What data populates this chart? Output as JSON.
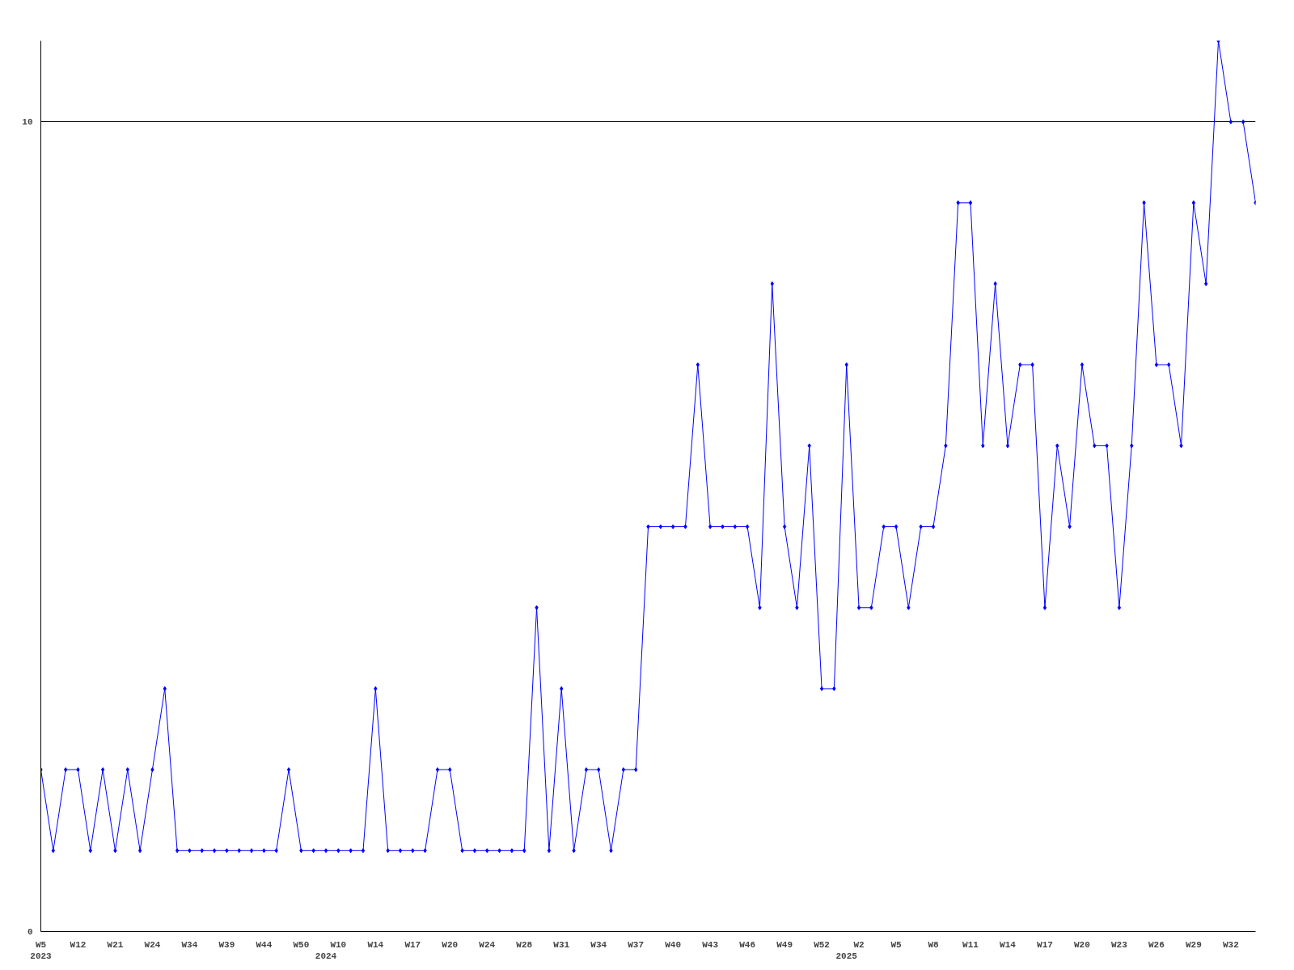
{
  "chart_data": {
    "type": "line",
    "categories": [
      "W5\n2023",
      null,
      null,
      "W12",
      null,
      null,
      "W21",
      null,
      null,
      "W24",
      null,
      null,
      "W34",
      null,
      null,
      "W39",
      null,
      null,
      "W44",
      null,
      null,
      "W50",
      null,
      "\n2024",
      "W10",
      null,
      null,
      "W14",
      null,
      null,
      "W17",
      null,
      null,
      "W20",
      null,
      null,
      "W24",
      null,
      null,
      "W28",
      null,
      null,
      "W31",
      null,
      null,
      "W34",
      null,
      null,
      "W37",
      null,
      null,
      "W40",
      null,
      null,
      "W43",
      null,
      null,
      "W46",
      null,
      null,
      "W49",
      null,
      null,
      "W52",
      null,
      "\n2025",
      "W2",
      null,
      null,
      "W5",
      null,
      null,
      "W8",
      null,
      null,
      "W11",
      null,
      null,
      "W14",
      null,
      null,
      "W17",
      null,
      null,
      "W20",
      null,
      null,
      "W23",
      null,
      null,
      "W26",
      null,
      null,
      "W29",
      null,
      null,
      "W32",
      null,
      null
    ],
    "series": [
      {
        "color": "#0000ff",
        "values": [
          2,
          1,
          2,
          2,
          1,
          2,
          1,
          2,
          1,
          2,
          3,
          1,
          1,
          1,
          1,
          1,
          1,
          1,
          1,
          1,
          2,
          1,
          1,
          1,
          1,
          1,
          1,
          3,
          1,
          1,
          1,
          1,
          2,
          2,
          1,
          1,
          1,
          1,
          1,
          1,
          4,
          1,
          3,
          1,
          2,
          2,
          1,
          2,
          2,
          5,
          5,
          5,
          5,
          7,
          5,
          5,
          5,
          5,
          4,
          8,
          5,
          4,
          6,
          3,
          3,
          7,
          4,
          4,
          5,
          5,
          4,
          5,
          5,
          6,
          9,
          9,
          6,
          8,
          6,
          7,
          7,
          4,
          6,
          5,
          7,
          6,
          6,
          4,
          6,
          9,
          7,
          7,
          6,
          9,
          8,
          11,
          10,
          10,
          9
        ]
      }
    ],
    "ylim": [
      0,
      11
    ],
    "yticks": [
      0,
      10
    ],
    "grid": "y",
    "marker": "diamond",
    "line_style": "solid"
  }
}
